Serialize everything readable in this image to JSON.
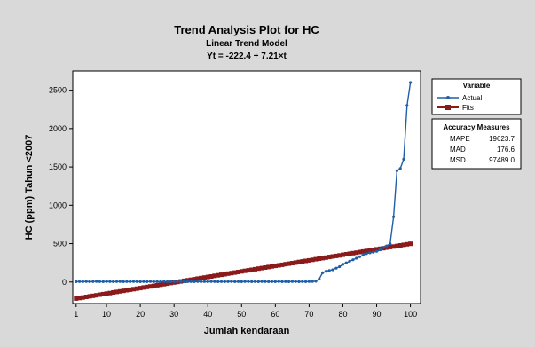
{
  "chart_data": {
    "type": "line",
    "title": "Trend Analysis Plot for HC",
    "subtitle": "Linear Trend Model",
    "equation": "Yt = -222.4 + 7.21×t",
    "xlabel": "Jumlah kendaraan",
    "ylabel": "HC (ppm) Tahun <2007",
    "xlim": [
      0,
      103
    ],
    "ylim": [
      -280,
      2750
    ],
    "x_ticks": [
      1,
      10,
      20,
      30,
      40,
      50,
      60,
      70,
      80,
      90,
      100
    ],
    "y_ticks": [
      0,
      500,
      1000,
      1500,
      2000,
      2500
    ],
    "grid": false,
    "legend_position": "right",
    "legend": {
      "title": "Variable",
      "entries": [
        "Actual",
        "Fits"
      ]
    },
    "colors": {
      "actual": "#1f5fa8",
      "fits": "#8b1a1a",
      "background": "#d9d9d9",
      "plot_area": "#ffffff"
    },
    "series": [
      {
        "name": "Actual",
        "x": [
          1,
          2,
          3,
          4,
          5,
          6,
          7,
          8,
          9,
          10,
          11,
          12,
          13,
          14,
          15,
          16,
          17,
          18,
          19,
          20,
          21,
          22,
          23,
          24,
          25,
          26,
          27,
          28,
          29,
          30,
          31,
          32,
          33,
          34,
          35,
          36,
          37,
          38,
          39,
          40,
          41,
          42,
          43,
          44,
          45,
          46,
          47,
          48,
          49,
          50,
          51,
          52,
          53,
          54,
          55,
          56,
          57,
          58,
          59,
          60,
          61,
          62,
          63,
          64,
          65,
          66,
          67,
          68,
          69,
          70,
          71,
          72,
          73,
          74,
          75,
          76,
          77,
          78,
          79,
          80,
          81,
          82,
          83,
          84,
          85,
          86,
          87,
          88,
          89,
          90,
          91,
          92,
          93,
          94,
          95,
          96,
          97,
          98,
          99,
          100
        ],
        "values": [
          5,
          6,
          5,
          7,
          5,
          6,
          8,
          6,
          5,
          7,
          6,
          5,
          6,
          7,
          5,
          6,
          5,
          7,
          6,
          5,
          6,
          5,
          7,
          5,
          6,
          5,
          7,
          6,
          5,
          6,
          5,
          7,
          6,
          5,
          6,
          5,
          7,
          5,
          6,
          5,
          7,
          6,
          5,
          6,
          5,
          6,
          7,
          5,
          6,
          5,
          7,
          6,
          5,
          6,
          5,
          7,
          6,
          5,
          6,
          5,
          7,
          5,
          6,
          5,
          7,
          6,
          5,
          6,
          5,
          7,
          8,
          10,
          40,
          120,
          140,
          150,
          160,
          180,
          200,
          230,
          250,
          270,
          290,
          310,
          330,
          350,
          370,
          380,
          390,
          400,
          420,
          450,
          470,
          500,
          850,
          1450,
          1480,
          1600,
          2300,
          2600
        ]
      },
      {
        "name": "Fits",
        "x": [
          1,
          2,
          3,
          4,
          5,
          6,
          7,
          8,
          9,
          10,
          11,
          12,
          13,
          14,
          15,
          16,
          17,
          18,
          19,
          20,
          21,
          22,
          23,
          24,
          25,
          26,
          27,
          28,
          29,
          30,
          31,
          32,
          33,
          34,
          35,
          36,
          37,
          38,
          39,
          40,
          41,
          42,
          43,
          44,
          45,
          46,
          47,
          48,
          49,
          50,
          51,
          52,
          53,
          54,
          55,
          56,
          57,
          58,
          59,
          60,
          61,
          62,
          63,
          64,
          65,
          66,
          67,
          68,
          69,
          70,
          71,
          72,
          73,
          74,
          75,
          76,
          77,
          78,
          79,
          80,
          81,
          82,
          83,
          84,
          85,
          86,
          87,
          88,
          89,
          90,
          91,
          92,
          93,
          94,
          95,
          96,
          97,
          98,
          99,
          100
        ],
        "values": [
          -215.2,
          -208.0,
          -200.8,
          -193.6,
          -186.4,
          -179.1,
          -171.9,
          -164.7,
          -157.5,
          -150.3,
          -143.1,
          -135.9,
          -128.7,
          -121.5,
          -114.3,
          -107.0,
          -99.8,
          -92.6,
          -85.4,
          -78.2,
          -71.0,
          -63.8,
          -56.6,
          -49.4,
          -42.1,
          -34.9,
          -27.7,
          -20.5,
          -13.3,
          -6.1,
          1.1,
          8.3,
          15.5,
          22.7,
          29.9,
          37.2,
          44.4,
          51.6,
          58.8,
          66.0,
          73.2,
          80.4,
          87.6,
          94.8,
          102.1,
          109.3,
          116.5,
          123.7,
          130.9,
          138.1,
          145.3,
          152.5,
          159.7,
          166.9,
          174.2,
          181.4,
          188.6,
          195.8,
          203.0,
          210.2,
          217.4,
          224.6,
          231.8,
          239.0,
          246.3,
          253.5,
          260.7,
          267.9,
          275.1,
          282.3,
          289.5,
          296.7,
          303.9,
          311.1,
          318.4,
          325.6,
          332.8,
          340.0,
          347.2,
          354.4,
          361.6,
          368.8,
          376.0,
          383.2,
          390.5,
          397.7,
          404.9,
          412.1,
          419.3,
          426.5,
          433.7,
          440.9,
          448.1,
          455.3,
          462.6,
          469.8,
          477.0,
          484.2,
          491.4,
          498.6
        ]
      }
    ],
    "accuracy": {
      "title": "Accuracy Measures",
      "rows": [
        {
          "label": "MAPE",
          "value": "19623.7"
        },
        {
          "label": "MAD",
          "value": "176.6"
        },
        {
          "label": "MSD",
          "value": "97489.0"
        }
      ]
    }
  }
}
